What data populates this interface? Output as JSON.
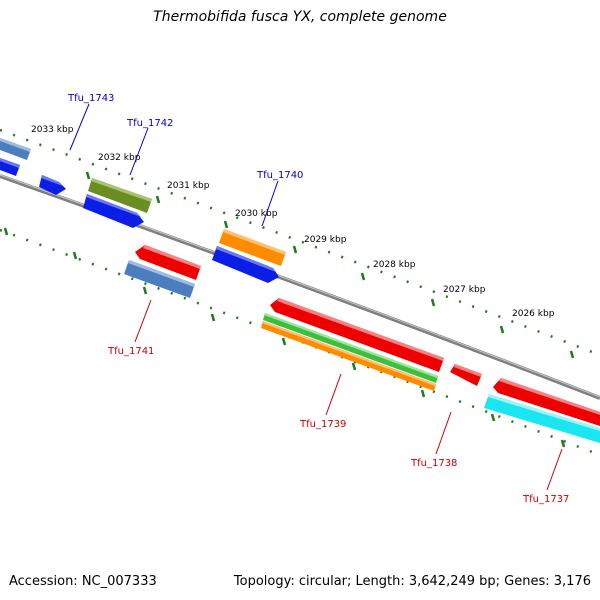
{
  "title": "Thermobifida fusca YX, complete genome",
  "accession_text": "Accession: NC_007333",
  "summary_text": "Topology: circular; Length: 3,642,249 bp; Genes: 3,176",
  "colors": {
    "backbone": "#7f7f7f",
    "tick": "#1e7a1e",
    "label_forward": "#0000c8",
    "label_reverse": "#c80000",
    "feature_red": "#ee0000",
    "feature_blue": "#0a1ee6",
    "feature_steelblue": "#4a7ec0",
    "feature_olive": "#6b8e23",
    "feature_orange": "#ff8c00",
    "feature_green": "#3cbf3c",
    "feature_cyan": "#19e6f0"
  },
  "scale_labels": [
    "2033 kbp",
    "2032 kbp",
    "2031 kbp",
    "2030 kbp",
    "2029 kbp",
    "2028 kbp",
    "2027 kbp",
    "2026 kbp"
  ],
  "gene_labels": {
    "tfu_1743": "Tfu_1743",
    "tfu_1742": "Tfu_1742",
    "tfu_1740": "Tfu_1740",
    "tfu_1741": "Tfu_1741",
    "tfu_1739": "Tfu_1739",
    "tfu_1738": "Tfu_1738",
    "tfu_1737": "Tfu_1737"
  }
}
